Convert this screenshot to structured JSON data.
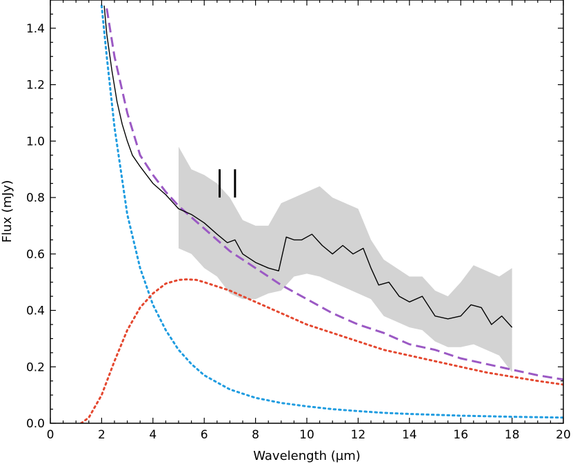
{
  "chart_data": {
    "type": "line",
    "title": "",
    "xlabel": "Wavelength (µm)",
    "ylabel": "Flux (mJy)",
    "xlim": [
      0,
      20
    ],
    "ylim": [
      0,
      1.5
    ],
    "x_ticks": [
      "0",
      "2",
      "4",
      "6",
      "8",
      "10",
      "12",
      "14",
      "16",
      "18",
      "20"
    ],
    "y_ticks": [
      "0.0",
      "0.2",
      "0.4",
      "0.6",
      "0.8",
      "1.0",
      "1.2",
      "1.4"
    ],
    "grid": false,
    "legend": null,
    "markers": [
      6.6,
      7.2
    ],
    "colors": {
      "spectrum": "#000000",
      "uncertainty_band": "#d3d3d3",
      "total_model": "#9b59c4",
      "hot_component": "#1f9ce0",
      "warm_component": "#e4472f"
    },
    "series": [
      {
        "name": "observed spectrum",
        "style": "solid",
        "x": [
          2.1,
          2.2,
          2.4,
          2.6,
          2.8,
          3.0,
          3.2,
          3.5,
          4.0,
          4.5,
          5.0,
          5.5,
          6.0,
          6.5,
          6.9,
          7.2,
          7.5,
          8.0,
          8.5,
          8.9,
          9.2,
          9.5,
          9.8,
          10.2,
          10.6,
          11.0,
          11.4,
          11.8,
          12.2,
          12.5,
          12.8,
          13.2,
          13.6,
          14.0,
          14.5,
          15.0,
          15.5,
          16.0,
          16.4,
          16.8,
          17.2,
          17.6,
          18.0
        ],
        "y": [
          1.48,
          1.38,
          1.25,
          1.14,
          1.06,
          1.0,
          0.95,
          0.91,
          0.85,
          0.81,
          0.76,
          0.74,
          0.71,
          0.67,
          0.64,
          0.65,
          0.6,
          0.57,
          0.55,
          0.54,
          0.66,
          0.65,
          0.65,
          0.67,
          0.63,
          0.6,
          0.63,
          0.6,
          0.62,
          0.55,
          0.49,
          0.5,
          0.45,
          0.43,
          0.45,
          0.38,
          0.37,
          0.38,
          0.42,
          0.41,
          0.35,
          0.38,
          0.34
        ]
      },
      {
        "name": "spectrum uncertainty",
        "style": "band",
        "x": [
          5.0,
          5.5,
          6.0,
          6.5,
          7.0,
          7.5,
          8.0,
          8.5,
          9.0,
          9.5,
          10.0,
          10.5,
          11.0,
          11.5,
          12.0,
          12.5,
          13.0,
          13.5,
          14.0,
          14.5,
          15.0,
          15.5,
          16.0,
          16.5,
          17.0,
          17.5,
          18.0
        ],
        "upper": [
          0.98,
          0.9,
          0.88,
          0.85,
          0.8,
          0.72,
          0.7,
          0.7,
          0.78,
          0.8,
          0.82,
          0.84,
          0.8,
          0.78,
          0.76,
          0.65,
          0.58,
          0.55,
          0.52,
          0.52,
          0.47,
          0.45,
          0.5,
          0.56,
          0.54,
          0.52,
          0.55
        ],
        "lower": [
          0.62,
          0.6,
          0.55,
          0.52,
          0.46,
          0.44,
          0.44,
          0.46,
          0.47,
          0.52,
          0.53,
          0.52,
          0.5,
          0.48,
          0.46,
          0.44,
          0.38,
          0.36,
          0.34,
          0.33,
          0.29,
          0.27,
          0.27,
          0.28,
          0.26,
          0.24,
          0.18
        ]
      },
      {
        "name": "total model",
        "style": "dashed",
        "x": [
          2.2,
          2.5,
          3.0,
          3.5,
          4.0,
          4.5,
          5.0,
          5.5,
          6.0,
          7.0,
          8.0,
          9.0,
          10.0,
          11.0,
          12.0,
          13.0,
          14.0,
          15.0,
          16.0,
          17.0,
          18.0,
          19.0,
          20.0
        ],
        "y": [
          1.47,
          1.3,
          1.1,
          0.95,
          0.88,
          0.82,
          0.77,
          0.73,
          0.69,
          0.61,
          0.55,
          0.49,
          0.44,
          0.39,
          0.35,
          0.32,
          0.28,
          0.26,
          0.23,
          0.21,
          0.19,
          0.17,
          0.155
        ]
      },
      {
        "name": "hot component",
        "style": "dotted",
        "x": [
          2.0,
          2.2,
          2.5,
          3.0,
          3.5,
          4.0,
          4.5,
          5.0,
          5.5,
          6.0,
          7.0,
          8.0,
          9.0,
          10.0,
          11.0,
          12.0,
          13.0,
          14.0,
          16.0,
          18.0,
          20.0
        ],
        "y": [
          1.48,
          1.3,
          1.05,
          0.74,
          0.55,
          0.42,
          0.33,
          0.26,
          0.21,
          0.17,
          0.12,
          0.09,
          0.072,
          0.06,
          0.05,
          0.043,
          0.037,
          0.033,
          0.027,
          0.023,
          0.02
        ]
      },
      {
        "name": "warm component",
        "style": "dotted",
        "x": [
          1.2,
          1.5,
          2.0,
          2.5,
          3.0,
          3.5,
          4.0,
          4.5,
          5.0,
          5.3,
          5.7,
          6.0,
          7.0,
          8.0,
          9.0,
          10.0,
          11.0,
          12.0,
          13.0,
          14.0,
          15.0,
          16.0,
          17.0,
          18.0,
          19.0,
          20.0
        ],
        "y": [
          0.0,
          0.02,
          0.1,
          0.22,
          0.33,
          0.41,
          0.46,
          0.495,
          0.508,
          0.51,
          0.508,
          0.5,
          0.47,
          0.43,
          0.39,
          0.35,
          0.32,
          0.29,
          0.26,
          0.24,
          0.22,
          0.2,
          0.18,
          0.165,
          0.15,
          0.137
        ]
      }
    ]
  }
}
